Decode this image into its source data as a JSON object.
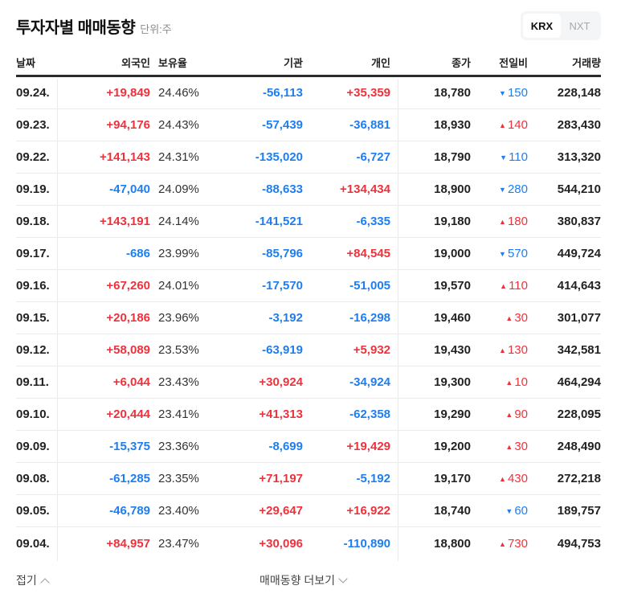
{
  "header": {
    "title": "투자자별 매매동향",
    "unit": "단위:주"
  },
  "market_toggle": {
    "options": [
      "KRX",
      "NXT"
    ],
    "selected": "KRX"
  },
  "table": {
    "columns": [
      "날짜",
      "외국인",
      "보유율",
      "기관",
      "개인",
      "종가",
      "전일비",
      "거래량"
    ],
    "rows": [
      {
        "date": "09.24.",
        "foreign": "+19,849",
        "holding": "24.46%",
        "institution": "-56,113",
        "individual": "+35,359",
        "close": "18,780",
        "change_dir": "down",
        "change": "150",
        "volume": "228,148"
      },
      {
        "date": "09.23.",
        "foreign": "+94,176",
        "holding": "24.43%",
        "institution": "-57,439",
        "individual": "-36,881",
        "close": "18,930",
        "change_dir": "up",
        "change": "140",
        "volume": "283,430"
      },
      {
        "date": "09.22.",
        "foreign": "+141,143",
        "holding": "24.31%",
        "institution": "-135,020",
        "individual": "-6,727",
        "close": "18,790",
        "change_dir": "down",
        "change": "110",
        "volume": "313,320"
      },
      {
        "date": "09.19.",
        "foreign": "-47,040",
        "holding": "24.09%",
        "institution": "-88,633",
        "individual": "+134,434",
        "close": "18,900",
        "change_dir": "down",
        "change": "280",
        "volume": "544,210"
      },
      {
        "date": "09.18.",
        "foreign": "+143,191",
        "holding": "24.14%",
        "institution": "-141,521",
        "individual": "-6,335",
        "close": "19,180",
        "change_dir": "up",
        "change": "180",
        "volume": "380,837"
      },
      {
        "date": "09.17.",
        "foreign": "-686",
        "holding": "23.99%",
        "institution": "-85,796",
        "individual": "+84,545",
        "close": "19,000",
        "change_dir": "down",
        "change": "570",
        "volume": "449,724"
      },
      {
        "date": "09.16.",
        "foreign": "+67,260",
        "holding": "24.01%",
        "institution": "-17,570",
        "individual": "-51,005",
        "close": "19,570",
        "change_dir": "up",
        "change": "110",
        "volume": "414,643"
      },
      {
        "date": "09.15.",
        "foreign": "+20,186",
        "holding": "23.96%",
        "institution": "-3,192",
        "individual": "-16,298",
        "close": "19,460",
        "change_dir": "up",
        "change": "30",
        "volume": "301,077"
      },
      {
        "date": "09.12.",
        "foreign": "+58,089",
        "holding": "23.53%",
        "institution": "-63,919",
        "individual": "+5,932",
        "close": "19,430",
        "change_dir": "up",
        "change": "130",
        "volume": "342,581"
      },
      {
        "date": "09.11.",
        "foreign": "+6,044",
        "holding": "23.43%",
        "institution": "+30,924",
        "individual": "-34,924",
        "close": "19,300",
        "change_dir": "up",
        "change": "10",
        "volume": "464,294"
      },
      {
        "date": "09.10.",
        "foreign": "+20,444",
        "holding": "23.41%",
        "institution": "+41,313",
        "individual": "-62,358",
        "close": "19,290",
        "change_dir": "up",
        "change": "90",
        "volume": "228,095"
      },
      {
        "date": "09.09.",
        "foreign": "-15,375",
        "holding": "23.36%",
        "institution": "-8,699",
        "individual": "+19,429",
        "close": "19,200",
        "change_dir": "up",
        "change": "30",
        "volume": "248,490"
      },
      {
        "date": "09.08.",
        "foreign": "-61,285",
        "holding": "23.35%",
        "institution": "+71,197",
        "individual": "-5,192",
        "close": "19,170",
        "change_dir": "up",
        "change": "430",
        "volume": "272,218"
      },
      {
        "date": "09.05.",
        "foreign": "-46,789",
        "holding": "23.40%",
        "institution": "+29,647",
        "individual": "+16,922",
        "close": "18,740",
        "change_dir": "down",
        "change": "60",
        "volume": "189,757"
      },
      {
        "date": "09.04.",
        "foreign": "+84,957",
        "holding": "23.47%",
        "institution": "+30,096",
        "individual": "-110,890",
        "close": "18,800",
        "change_dir": "up",
        "change": "730",
        "volume": "494,753"
      }
    ]
  },
  "footer": {
    "fold_label": "접기",
    "more_label": "매매동향 더보기"
  },
  "colors": {
    "up": "#f0313b",
    "down": "#1e7ef0",
    "text": "#222222",
    "muted": "#8a8a8a",
    "toggle_bg": "#f4f5f7"
  },
  "icons": {
    "up_triangle": "▲",
    "down_triangle": "▼",
    "chevron_up": "chevron-up-icon",
    "chevron_down": "chevron-down-icon"
  }
}
